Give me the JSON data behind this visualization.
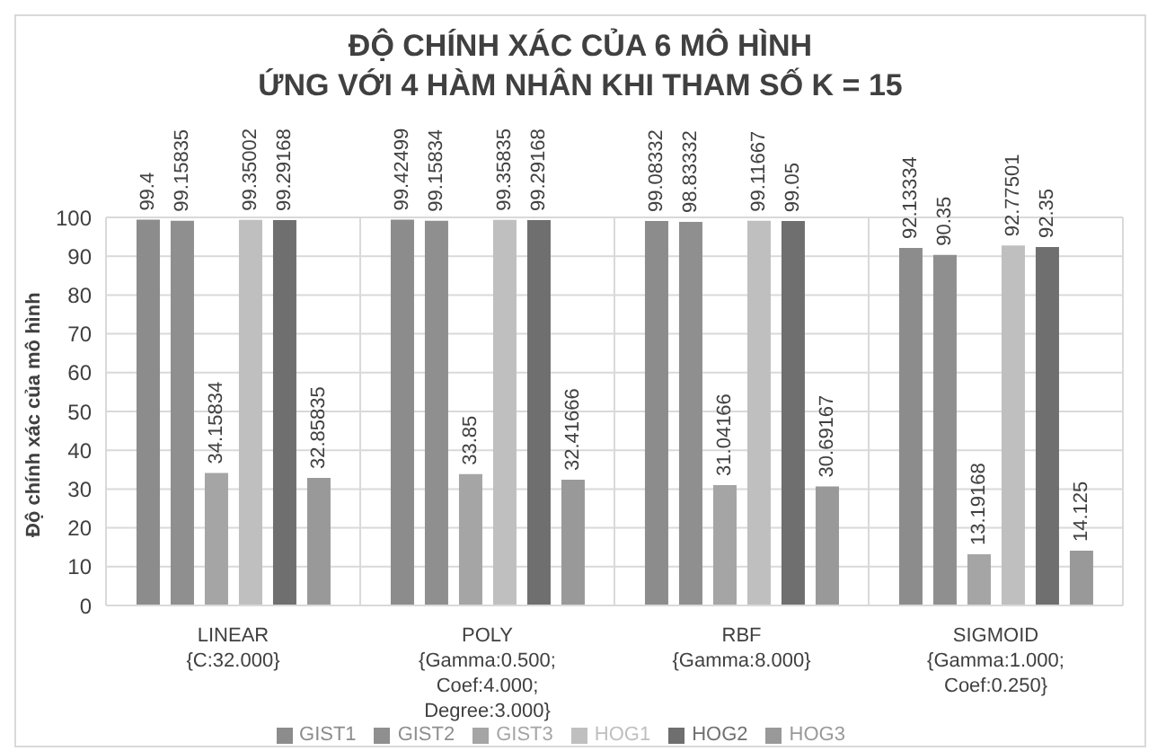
{
  "chart_data": {
    "type": "bar",
    "title": "ĐỘ CHÍNH XÁC CỦA 6 MÔ HÌNH\nỨNG VỚI 4 HÀM NHÂN KHI THAM SỐ K = 15",
    "ylabel": "Độ chính xác của mô hình",
    "categories": [
      "LINEAR\n{C:32.000}",
      "POLY\n{Gamma:0.500;\nCoef:4.000;\nDegree:3.000}",
      "RBF\n{Gamma:8.000}",
      "SIGMOID\n{Gamma:1.000;\nCoef:0.250}"
    ],
    "series": [
      {
        "name": "GIST1",
        "color": "#8c8c8c",
        "values": [
          99.4,
          99.42499,
          99.08332,
          92.13334
        ]
      },
      {
        "name": "GIST2",
        "color": "#8f8f8f",
        "values": [
          99.15835,
          99.15834,
          98.83332,
          90.35
        ]
      },
      {
        "name": "GIST3",
        "color": "#a5a5a5",
        "values": [
          34.15834,
          33.85,
          31.04166,
          13.19168
        ]
      },
      {
        "name": "HOG1",
        "color": "#bfbfbf",
        "values": [
          99.35002,
          99.35835,
          99.11667,
          92.77501
        ]
      },
      {
        "name": "HOG2",
        "color": "#6f6f6f",
        "values": [
          99.29168,
          99.29168,
          99.05,
          92.35
        ]
      },
      {
        "name": "HOG3",
        "color": "#999999",
        "values": [
          32.85835,
          32.41666,
          30.69167,
          14.125
        ]
      }
    ],
    "ylim": [
      0,
      100
    ],
    "yticks": [
      0,
      10,
      20,
      30,
      40,
      50,
      60,
      70,
      80,
      90,
      100
    ],
    "grid": true,
    "legend": "bottom",
    "data_labels": true
  }
}
